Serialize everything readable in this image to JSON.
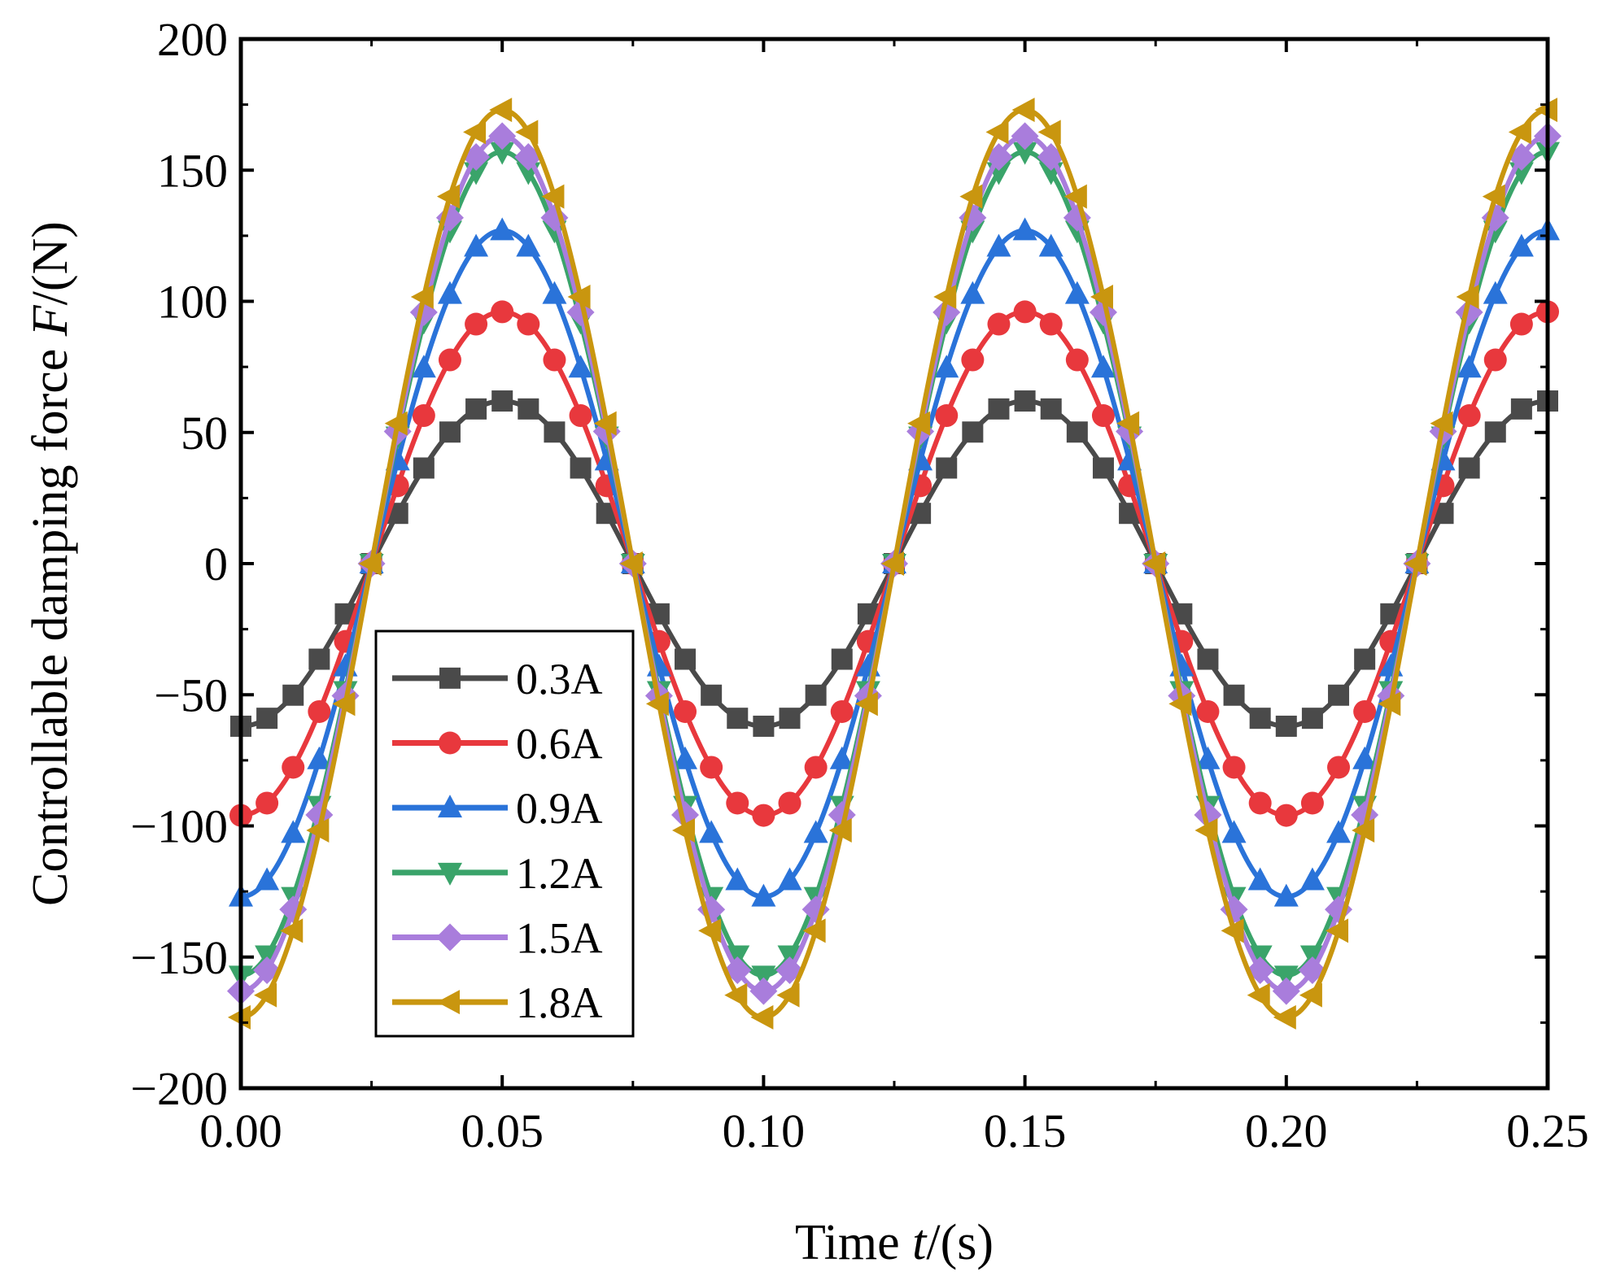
{
  "chart_data": {
    "type": "line",
    "title": "",
    "xlabel": {
      "prefix": "Time ",
      "italic": "t",
      "suffix": "/(s)"
    },
    "ylabel": {
      "prefix": "Controllable damping force ",
      "italic": "F",
      "suffix": "/(N)"
    },
    "xlim": [
      0,
      0.25
    ],
    "ylim": [
      -200,
      200
    ],
    "x_ticks": [
      0,
      0.05,
      0.1,
      0.15,
      0.2,
      0.25
    ],
    "x_tick_labels": [
      "0.00",
      "0.05",
      "0.10",
      "0.15",
      "0.20",
      "0.25"
    ],
    "y_ticks": [
      -200,
      -150,
      -100,
      -50,
      0,
      50,
      100,
      150,
      200
    ],
    "y_tick_labels": [
      "−200",
      "−150",
      "−100",
      "−50",
      "0",
      "50",
      "100",
      "150",
      "200"
    ],
    "grid": false,
    "legend_position": "bottom-left",
    "period_s": 0.1,
    "sample_step_s": 0.005,
    "series": [
      {
        "name": "0.3A",
        "amplitude": 62,
        "color": "#4a4a4a",
        "marker": "square"
      },
      {
        "name": "0.6A",
        "amplitude": 96,
        "color": "#e8383d",
        "marker": "circle"
      },
      {
        "name": "0.9A",
        "amplitude": 127,
        "color": "#2a73d9",
        "marker": "triangle-up"
      },
      {
        "name": "1.2A",
        "amplitude": 157,
        "color": "#3aa46a",
        "marker": "triangle-down"
      },
      {
        "name": "1.5A",
        "amplitude": 163,
        "color": "#a97ddc",
        "marker": "diamond"
      },
      {
        "name": "1.8A",
        "amplitude": 173,
        "color": "#c9960f",
        "marker": "triangle-left"
      }
    ]
  }
}
